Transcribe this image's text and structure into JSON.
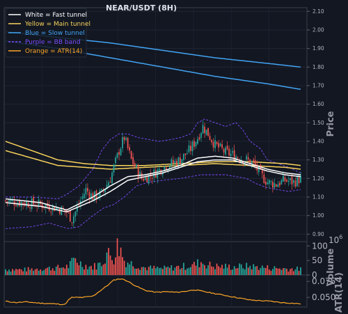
{
  "chart_data": [
    {
      "type": "candlestick",
      "title": "NEAR/USDT (8H)",
      "ylabel": "Price",
      "ylim": [
        0.86,
        2.12
      ],
      "yticks": [
        "2.10",
        "2.00",
        "1.90",
        "1.80",
        "1.70",
        "1.60",
        "1.50",
        "1.40",
        "1.30",
        "1.20",
        "1.10",
        "1.00",
        "0.90"
      ],
      "grid": true,
      "legend_position": "top-left",
      "legend": [
        {
          "label": "White = Fast tunnel",
          "color": "#ffffff",
          "style": "solid"
        },
        {
          "label": "Yellow = Main tunnel",
          "color": "#f9d45c",
          "style": "solid"
        },
        {
          "label": "Blue = Slow tunnel",
          "color": "#42a5f5",
          "style": "solid"
        },
        {
          "label": "Purple = BB band",
          "color": "#7c4dff",
          "style": "dashed"
        },
        {
          "label": "Orange = ATR(14)",
          "color": "#ffa726",
          "style": "solid"
        }
      ],
      "candle_colors": {
        "up": "#26a69a",
        "down": "#ef5350"
      },
      "close_anchors": [
        [
          0,
          1.08
        ],
        [
          10,
          1.07
        ],
        [
          20,
          1.06
        ],
        [
          30,
          1.04
        ],
        [
          35,
          1.02
        ],
        [
          38,
          0.98
        ],
        [
          42,
          1.06
        ],
        [
          46,
          1.14
        ],
        [
          50,
          1.1
        ],
        [
          55,
          1.12
        ],
        [
          60,
          1.2
        ],
        [
          65,
          1.35
        ],
        [
          68,
          1.42
        ],
        [
          72,
          1.3
        ],
        [
          78,
          1.2
        ],
        [
          84,
          1.22
        ],
        [
          90,
          1.26
        ],
        [
          95,
          1.28
        ],
        [
          100,
          1.3
        ],
        [
          106,
          1.36
        ],
        [
          110,
          1.42
        ],
        [
          113,
          1.48
        ],
        [
          116,
          1.44
        ],
        [
          120,
          1.38
        ],
        [
          126,
          1.34
        ],
        [
          132,
          1.32
        ],
        [
          138,
          1.3
        ],
        [
          142,
          1.28
        ],
        [
          146,
          1.22
        ],
        [
          150,
          1.18
        ],
        [
          155,
          1.17
        ],
        [
          160,
          1.19
        ],
        [
          165,
          1.18
        ],
        [
          169,
          1.2
        ]
      ],
      "fast_tunnel_upper": [
        [
          0,
          1.09
        ],
        [
          20,
          1.07
        ],
        [
          35,
          1.03
        ],
        [
          50,
          1.1
        ],
        [
          60,
          1.16
        ],
        [
          70,
          1.21
        ],
        [
          80,
          1.22
        ],
        [
          90,
          1.24
        ],
        [
          100,
          1.27
        ],
        [
          110,
          1.31
        ],
        [
          120,
          1.32
        ],
        [
          130,
          1.31
        ],
        [
          140,
          1.28
        ],
        [
          150,
          1.25
        ],
        [
          160,
          1.23
        ],
        [
          169,
          1.22
        ]
      ],
      "fast_tunnel_lower": [
        [
          0,
          1.07
        ],
        [
          20,
          1.05
        ],
        [
          35,
          1.02
        ],
        [
          50,
          1.08
        ],
        [
          60,
          1.13
        ],
        [
          70,
          1.19
        ],
        [
          80,
          1.21
        ],
        [
          90,
          1.23
        ],
        [
          100,
          1.26
        ],
        [
          110,
          1.29
        ],
        [
          120,
          1.3
        ],
        [
          130,
          1.3
        ],
        [
          140,
          1.27
        ],
        [
          150,
          1.24
        ],
        [
          160,
          1.22
        ],
        [
          169,
          1.21
        ]
      ],
      "main_tunnel_upper": [
        [
          0,
          1.4
        ],
        [
          15,
          1.35
        ],
        [
          30,
          1.3
        ],
        [
          45,
          1.28
        ],
        [
          60,
          1.27
        ],
        [
          80,
          1.27
        ],
        [
          100,
          1.28
        ],
        [
          120,
          1.29
        ],
        [
          140,
          1.29
        ],
        [
          160,
          1.28
        ],
        [
          169,
          1.27
        ]
      ],
      "main_tunnel_lower": [
        [
          0,
          1.35
        ],
        [
          15,
          1.31
        ],
        [
          30,
          1.27
        ],
        [
          45,
          1.26
        ],
        [
          60,
          1.25
        ],
        [
          80,
          1.26
        ],
        [
          100,
          1.27
        ],
        [
          120,
          1.28
        ],
        [
          140,
          1.27
        ],
        [
          160,
          1.26
        ],
        [
          169,
          1.25
        ]
      ],
      "slow_tunnel_upper": [
        [
          0,
          1.99
        ],
        [
          30,
          1.96
        ],
        [
          60,
          1.93
        ],
        [
          90,
          1.89
        ],
        [
          120,
          1.85
        ],
        [
          150,
          1.82
        ],
        [
          169,
          1.8
        ]
      ],
      "slow_tunnel_lower": [
        [
          0,
          1.94
        ],
        [
          30,
          1.9
        ],
        [
          60,
          1.85
        ],
        [
          90,
          1.8
        ],
        [
          120,
          1.75
        ],
        [
          150,
          1.71
        ],
        [
          169,
          1.68
        ]
      ],
      "bb_upper": [
        [
          0,
          1.1
        ],
        [
          15,
          1.1
        ],
        [
          30,
          1.09
        ],
        [
          36,
          1.12
        ],
        [
          42,
          1.16
        ],
        [
          50,
          1.25
        ],
        [
          55,
          1.35
        ],
        [
          60,
          1.41
        ],
        [
          65,
          1.44
        ],
        [
          70,
          1.44
        ],
        [
          76,
          1.42
        ],
        [
          82,
          1.41
        ],
        [
          88,
          1.4
        ],
        [
          95,
          1.41
        ],
        [
          100,
          1.42
        ],
        [
          106,
          1.44
        ],
        [
          110,
          1.5
        ],
        [
          114,
          1.52
        ],
        [
          120,
          1.5
        ],
        [
          126,
          1.48
        ],
        [
          132,
          1.5
        ],
        [
          136,
          1.46
        ],
        [
          140,
          1.4
        ],
        [
          146,
          1.36
        ],
        [
          150,
          1.3
        ],
        [
          156,
          1.28
        ],
        [
          162,
          1.26
        ],
        [
          169,
          1.23
        ]
      ],
      "bb_lower": [
        [
          0,
          0.93
        ],
        [
          15,
          0.94
        ],
        [
          25,
          0.96
        ],
        [
          32,
          0.94
        ],
        [
          36,
          0.93
        ],
        [
          42,
          0.94
        ],
        [
          50,
          1.0
        ],
        [
          56,
          1.04
        ],
        [
          62,
          1.06
        ],
        [
          68,
          1.1
        ],
        [
          75,
          1.16
        ],
        [
          82,
          1.18
        ],
        [
          90,
          1.19
        ],
        [
          100,
          1.2
        ],
        [
          106,
          1.21
        ],
        [
          112,
          1.22
        ],
        [
          118,
          1.22
        ],
        [
          126,
          1.22
        ],
        [
          132,
          1.21
        ],
        [
          138,
          1.2
        ],
        [
          144,
          1.17
        ],
        [
          150,
          1.15
        ],
        [
          156,
          1.14
        ],
        [
          162,
          1.13
        ],
        [
          169,
          1.14
        ]
      ]
    },
    {
      "type": "bar",
      "ylabel": "Volume",
      "unit_label": "1e6",
      "yticks": [
        "100",
        "50",
        "0"
      ],
      "ylim": [
        0,
        115
      ],
      "volume_anchors": [
        [
          0,
          20
        ],
        [
          10,
          18
        ],
        [
          20,
          22
        ],
        [
          30,
          25
        ],
        [
          36,
          30
        ],
        [
          40,
          55
        ],
        [
          44,
          35
        ],
        [
          50,
          28
        ],
        [
          55,
          40
        ],
        [
          58,
          75
        ],
        [
          62,
          60
        ],
        [
          64,
          100
        ],
        [
          66,
          85
        ],
        [
          68,
          50
        ],
        [
          72,
          40
        ],
        [
          80,
          25
        ],
        [
          90,
          22
        ],
        [
          100,
          28
        ],
        [
          108,
          35
        ],
        [
          112,
          45
        ],
        [
          116,
          35
        ],
        [
          120,
          30
        ],
        [
          130,
          28
        ],
        [
          140,
          30
        ],
        [
          150,
          25
        ],
        [
          160,
          22
        ],
        [
          169,
          20
        ]
      ]
    },
    {
      "type": "line",
      "ylabel": "ATR(14)",
      "yticks": [
        "0.075",
        "0.050"
      ],
      "ylim": [
        0.035,
        0.085
      ],
      "atr": [
        [
          0,
          0.044
        ],
        [
          6,
          0.042
        ],
        [
          12,
          0.043
        ],
        [
          20,
          0.041
        ],
        [
          28,
          0.04
        ],
        [
          34,
          0.039
        ],
        [
          36,
          0.046
        ],
        [
          38,
          0.05
        ],
        [
          44,
          0.05
        ],
        [
          50,
          0.052
        ],
        [
          54,
          0.06
        ],
        [
          58,
          0.068
        ],
        [
          62,
          0.077
        ],
        [
          65,
          0.079
        ],
        [
          68,
          0.078
        ],
        [
          72,
          0.072
        ],
        [
          76,
          0.066
        ],
        [
          80,
          0.061
        ],
        [
          86,
          0.058
        ],
        [
          92,
          0.059
        ],
        [
          98,
          0.058
        ],
        [
          104,
          0.06
        ],
        [
          108,
          0.062
        ],
        [
          112,
          0.06
        ],
        [
          116,
          0.058
        ],
        [
          122,
          0.055
        ],
        [
          128,
          0.052
        ],
        [
          134,
          0.049
        ],
        [
          140,
          0.046
        ],
        [
          146,
          0.045
        ],
        [
          152,
          0.044
        ],
        [
          158,
          0.042
        ],
        [
          164,
          0.041
        ],
        [
          169,
          0.04
        ]
      ]
    }
  ]
}
